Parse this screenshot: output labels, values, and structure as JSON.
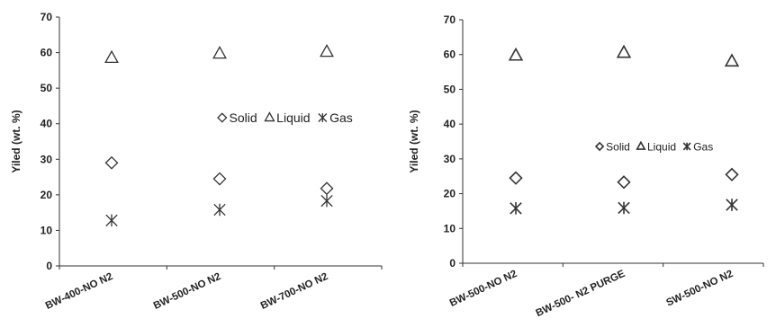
{
  "chart_data": [
    {
      "type": "scatter",
      "categories": [
        "BW-400-NO N2",
        "BW-500-NO N2",
        "BW-700-NO N2"
      ],
      "series": [
        {
          "name": "Solid",
          "marker": "diamond",
          "values": [
            29,
            24.5,
            21.8
          ]
        },
        {
          "name": "Liquid",
          "marker": "triangle",
          "values": [
            58.5,
            59.7,
            60.2
          ]
        },
        {
          "name": "Gas",
          "marker": "asterisk",
          "values": [
            12.8,
            15.8,
            18.3
          ]
        }
      ],
      "ylabel": "Yiled (wt. %)",
      "ylim": [
        0,
        70
      ],
      "yticks": [
        0,
        10,
        20,
        30,
        40,
        50,
        60,
        70
      ],
      "legend_position": "right",
      "grid": false
    },
    {
      "type": "scatter",
      "categories": [
        "BW-500-NO N2",
        "BW-500- N2 PURGE",
        "SW-500-NO N2"
      ],
      "series": [
        {
          "name": "Solid",
          "marker": "diamond",
          "values": [
            24.5,
            23.3,
            25.5
          ]
        },
        {
          "name": "Liquid",
          "marker": "triangle",
          "values": [
            59.7,
            60.5,
            58
          ]
        },
        {
          "name": "Gas",
          "marker": "asterisk",
          "values": [
            15.8,
            15.9,
            16.8
          ]
        }
      ],
      "ylabel": "Yiled (wt. %)",
      "ylim": [
        0,
        70
      ],
      "yticks": [
        0,
        10,
        20,
        30,
        40,
        50,
        60,
        70
      ],
      "legend_position": "right",
      "grid": false
    }
  ],
  "colors": {
    "marker": "#333333",
    "axis": "#333333",
    "text": "#222222"
  }
}
